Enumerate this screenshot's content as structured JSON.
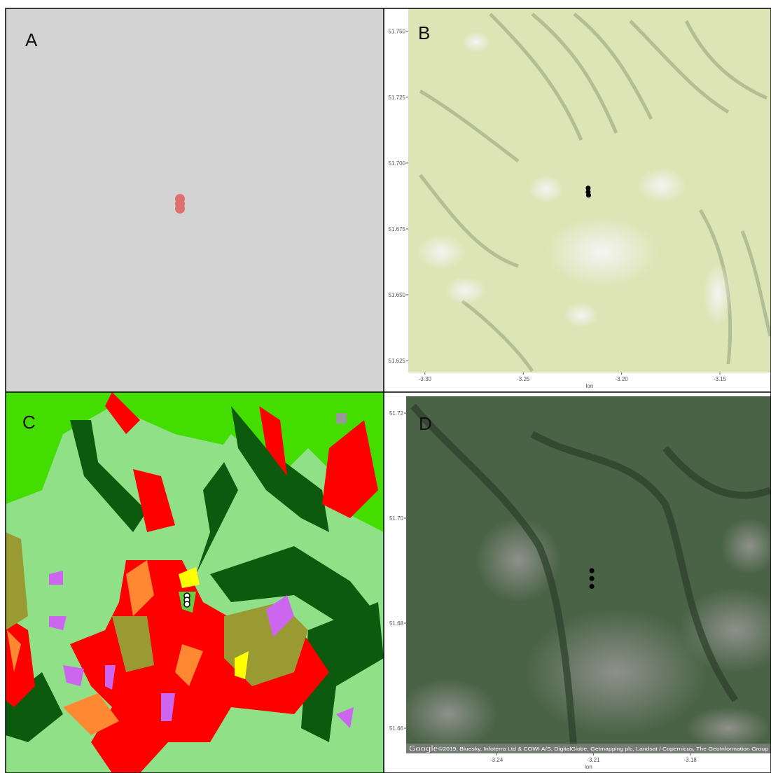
{
  "panels": [
    {
      "label": "A"
    },
    {
      "label": "B",
      "map": {
        "xlim": [
          -3.3085,
          -3.124
        ],
        "ylim": [
          51.6205,
          51.7587
        ],
        "xticks": [
          {
            "value": -3.3,
            "label": "-3.30"
          },
          {
            "value": -3.25,
            "label": "-3.25"
          },
          {
            "value": -3.2,
            "label": "-3.20"
          },
          {
            "value": -3.15,
            "label": "-3.15"
          }
        ],
        "yticks": [
          {
            "value": 51.625,
            "label": "51.625"
          },
          {
            "value": 51.65,
            "label": "51.650"
          },
          {
            "value": 51.675,
            "label": "51.675"
          },
          {
            "value": 51.7,
            "label": "51.700"
          },
          {
            "value": 51.725,
            "label": "51.725"
          },
          {
            "value": 51.75,
            "label": "51.750"
          }
        ],
        "xlabel": "lon",
        "points": {
          "lon": [
            -3.217,
            -3.217,
            -3.2168
          ],
          "lat": [
            51.6905,
            51.689,
            51.6878
          ]
        }
      }
    },
    {
      "label": "C"
    },
    {
      "label": "D",
      "map": {
        "xlim": [
          -3.268,
          -3.155
        ],
        "ylim": [
          51.6552,
          51.7232
        ],
        "xticks": [
          -3.24,
          -3.21,
          -3.18
        ],
        "yticks": [
          {
            "value": 51.66,
            "label": "51.66"
          },
          {
            "value": 51.68,
            "label": "51.68"
          },
          {
            "value": 51.7,
            "label": "51.70"
          },
          {
            "value": 51.72,
            "label": "51.72"
          }
        ],
        "xlabel": "lon",
        "points": {
          "lon": [
            -3.2105,
            -3.2105,
            -3.2105
          ],
          "lat": [
            51.69,
            51.6885,
            51.687
          ]
        },
        "attribution": "©2019, Bluesky, Infoterra Ltd & COWI A/S, DigitalGlobe, Getmapping plc, Landsat / Copernicus, The GeoInformation Group",
        "logo": "Google"
      }
    }
  ]
}
